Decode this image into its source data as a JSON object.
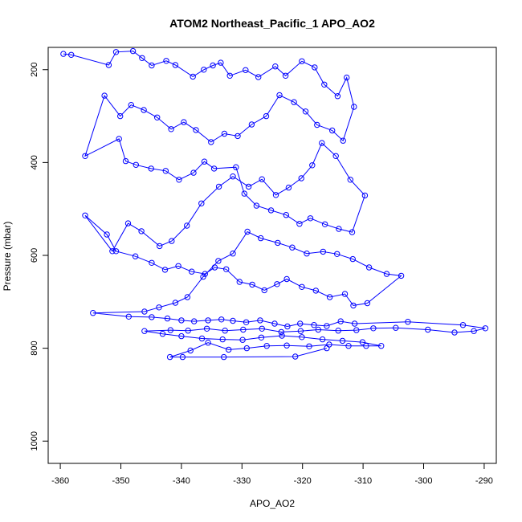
{
  "chart_data": {
    "type": "scatter",
    "title": "ATOM2 Northeast_Pacific_1 APO_AO2",
    "xlabel": "APO_AO2",
    "ylabel": "Pressure (mbar)",
    "xlim": [
      -362,
      -288
    ],
    "ylim": [
      1048,
      152
    ],
    "y_reversed": true,
    "grid": false,
    "legend": "none",
    "x_ticks": [
      -360,
      -350,
      -340,
      -330,
      -320,
      -310,
      -300,
      -290
    ],
    "y_ticks": [
      200,
      400,
      600,
      800,
      1000
    ],
    "color": "#0000ff",
    "series": [
      {
        "points": [
          [
            -359.5,
            166
          ],
          [
            -358.2,
            168
          ],
          [
            -352.0,
            190
          ],
          [
            -350.8,
            162
          ],
          [
            -348.0,
            160
          ],
          [
            -346.5,
            175
          ],
          [
            -344.9,
            191
          ],
          [
            -342.5,
            181
          ],
          [
            -341.0,
            190
          ],
          [
            -338.1,
            215
          ],
          [
            -336.3,
            200
          ],
          [
            -334.8,
            191
          ],
          [
            -333.5,
            185
          ],
          [
            -332.0,
            213
          ],
          [
            -329.4,
            201
          ],
          [
            -327.3,
            216
          ],
          [
            -324.5,
            193
          ],
          [
            -322.8,
            213
          ],
          [
            -320.1,
            182
          ],
          [
            -318.0,
            195
          ],
          [
            -316.4,
            232
          ],
          [
            -314.2,
            257
          ],
          [
            -312.7,
            217
          ],
          [
            -311.5,
            280
          ],
          [
            -313.3,
            353
          ],
          [
            -315.1,
            331
          ],
          [
            -317.6,
            319
          ],
          [
            -319.5,
            290
          ],
          [
            -321.4,
            270
          ],
          [
            -323.8,
            255
          ],
          [
            -326.0,
            300
          ],
          [
            -328.4,
            318
          ],
          [
            -330.7,
            343
          ],
          [
            -332.9,
            338
          ],
          [
            -335.1,
            356
          ],
          [
            -337.6,
            330
          ],
          [
            -339.6,
            313
          ],
          [
            -341.7,
            328
          ],
          [
            -344.0,
            303
          ],
          [
            -346.2,
            287
          ],
          [
            -348.3,
            276
          ],
          [
            -350.1,
            300
          ],
          [
            -352.7,
            256
          ],
          [
            -355.9,
            386
          ],
          [
            -350.3,
            349
          ],
          [
            -349.2,
            397
          ],
          [
            -347.5,
            405
          ],
          [
            -345.0,
            413
          ],
          [
            -342.6,
            418
          ],
          [
            -340.4,
            437
          ],
          [
            -338.0,
            422
          ],
          [
            -336.2,
            398
          ],
          [
            -334.6,
            413
          ],
          [
            -331.0,
            410
          ],
          [
            -329.6,
            467
          ],
          [
            -327.6,
            493
          ],
          [
            -325.2,
            503
          ],
          [
            -322.7,
            513
          ],
          [
            -320.5,
            532
          ],
          [
            -318.7,
            520
          ],
          [
            -316.3,
            533
          ],
          [
            -314.0,
            543
          ],
          [
            -311.8,
            550
          ],
          [
            -309.7,
            471
          ],
          [
            -312.1,
            437
          ],
          [
            -314.5,
            386
          ],
          [
            -316.8,
            358
          ],
          [
            -318.4,
            406
          ],
          [
            -320.2,
            434
          ],
          [
            -322.3,
            454
          ],
          [
            -324.4,
            470
          ],
          [
            -326.7,
            436
          ],
          [
            -328.9,
            452
          ],
          [
            -331.5,
            430
          ],
          [
            -333.8,
            452
          ],
          [
            -336.7,
            488
          ],
          [
            -339.1,
            536
          ],
          [
            -341.6,
            569
          ],
          [
            -343.6,
            580
          ],
          [
            -346.6,
            548
          ],
          [
            -348.8,
            531
          ],
          [
            -351.4,
            591
          ],
          [
            -355.9,
            514
          ],
          [
            -352.3,
            555
          ],
          [
            -350.8,
            591
          ],
          [
            -347.6,
            602
          ],
          [
            -344.9,
            616
          ],
          [
            -342.7,
            631
          ],
          [
            -340.5,
            623
          ],
          [
            -338.3,
            635
          ],
          [
            -336.1,
            640
          ],
          [
            -334.5,
            626
          ],
          [
            -332.6,
            630
          ],
          [
            -330.4,
            657
          ],
          [
            -328.3,
            663
          ],
          [
            -326.3,
            675
          ],
          [
            -324.2,
            662
          ],
          [
            -322.6,
            651
          ],
          [
            -320.1,
            668
          ],
          [
            -317.8,
            676
          ],
          [
            -315.5,
            690
          ],
          [
            -313.0,
            683
          ],
          [
            -311.6,
            708
          ],
          [
            -309.3,
            703
          ],
          [
            -303.7,
            644
          ],
          [
            -306.1,
            640
          ],
          [
            -309.0,
            626
          ],
          [
            -311.7,
            608
          ],
          [
            -314.3,
            597
          ],
          [
            -316.6,
            592
          ],
          [
            -319.3,
            596
          ],
          [
            -321.7,
            583
          ],
          [
            -324.1,
            573
          ],
          [
            -326.9,
            563
          ],
          [
            -329.1,
            549
          ],
          [
            -331.5,
            596
          ],
          [
            -333.9,
            612
          ],
          [
            -336.4,
            646
          ],
          [
            -339.0,
            690
          ],
          [
            -341.0,
            702
          ],
          [
            -343.7,
            712
          ],
          [
            -346.1,
            721
          ],
          [
            -354.6,
            724
          ],
          [
            -348.7,
            732
          ],
          [
            -344.9,
            733
          ],
          [
            -342.3,
            736
          ],
          [
            -340.0,
            740
          ],
          [
            -337.9,
            742
          ],
          [
            -335.6,
            740
          ],
          [
            -333.4,
            738
          ],
          [
            -331.5,
            741
          ],
          [
            -329.3,
            744
          ],
          [
            -327.0,
            740
          ],
          [
            -324.6,
            747
          ],
          [
            -322.5,
            753
          ],
          [
            -320.4,
            747
          ],
          [
            -318.1,
            750
          ],
          [
            -316.0,
            752
          ],
          [
            -313.7,
            742
          ],
          [
            -311.4,
            747
          ],
          [
            -302.6,
            743
          ],
          [
            -293.5,
            750
          ],
          [
            -289.8,
            757
          ],
          [
            -291.7,
            763
          ],
          [
            -294.9,
            766
          ],
          [
            -299.3,
            760
          ],
          [
            -304.6,
            756
          ],
          [
            -308.3,
            757
          ],
          [
            -311.1,
            761
          ],
          [
            -314.1,
            762
          ],
          [
            -317.4,
            760
          ],
          [
            -320.3,
            763
          ],
          [
            -323.5,
            765
          ],
          [
            -326.7,
            758
          ],
          [
            -329.8,
            760
          ],
          [
            -332.8,
            762
          ],
          [
            -335.8,
            758
          ],
          [
            -338.9,
            762
          ],
          [
            -341.8,
            761
          ],
          [
            -346.1,
            763
          ],
          [
            -343.1,
            769
          ],
          [
            -340.0,
            774
          ],
          [
            -336.6,
            779
          ],
          [
            -333.2,
            781
          ],
          [
            -329.9,
            782
          ],
          [
            -326.8,
            777
          ],
          [
            -323.4,
            773
          ],
          [
            -320.1,
            776
          ],
          [
            -316.7,
            781
          ],
          [
            -313.4,
            784
          ],
          [
            -310.1,
            787
          ],
          [
            -307.0,
            795
          ],
          [
            -309.5,
            795
          ],
          [
            -312.4,
            795
          ],
          [
            -315.6,
            792
          ],
          [
            -318.9,
            796
          ],
          [
            -322.6,
            794
          ],
          [
            -325.9,
            795
          ],
          [
            -329.2,
            800
          ],
          [
            -332.2,
            803
          ],
          [
            -335.6,
            788
          ],
          [
            -338.5,
            805
          ],
          [
            -341.9,
            819
          ],
          [
            -339.8,
            819
          ],
          [
            -333.0,
            819
          ],
          [
            -321.2,
            818
          ],
          [
            -316.0,
            800
          ]
        ]
      }
    ]
  }
}
